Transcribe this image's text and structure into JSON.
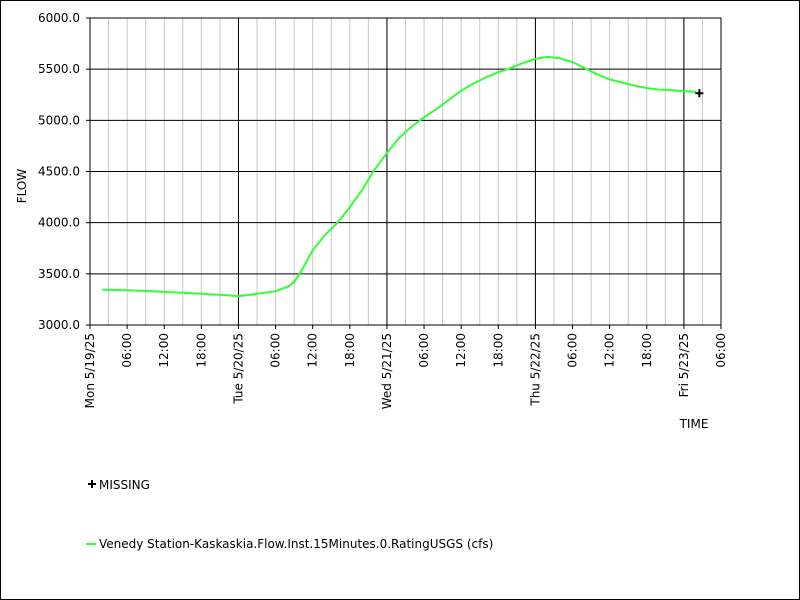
{
  "chart_data": {
    "type": "line",
    "ylabel": "FLOW",
    "xlabel": "TIME",
    "ylim": [
      3000,
      6000
    ],
    "yticks": [
      "3000.0",
      "3500.0",
      "4000.0",
      "4500.0",
      "5000.0",
      "5500.0",
      "6000.0"
    ],
    "x_start": "2025-05-19T00:00",
    "x_end": "2025-05-23T06:00",
    "x_tick_labels": [
      {
        "t": "2025-05-19T00:00",
        "label": "Mon 5/19/25",
        "major": true
      },
      {
        "t": "2025-05-19T06:00",
        "label": "06:00",
        "major": false
      },
      {
        "t": "2025-05-19T12:00",
        "label": "12:00",
        "major": false
      },
      {
        "t": "2025-05-19T18:00",
        "label": "18:00",
        "major": false
      },
      {
        "t": "2025-05-20T00:00",
        "label": "Tue 5/20/25",
        "major": true
      },
      {
        "t": "2025-05-20T06:00",
        "label": "06:00",
        "major": false
      },
      {
        "t": "2025-05-20T12:00",
        "label": "12:00",
        "major": false
      },
      {
        "t": "2025-05-20T18:00",
        "label": "18:00",
        "major": false
      },
      {
        "t": "2025-05-21T00:00",
        "label": "Wed 5/21/25",
        "major": true
      },
      {
        "t": "2025-05-21T06:00",
        "label": "06:00",
        "major": false
      },
      {
        "t": "2025-05-21T12:00",
        "label": "12:00",
        "major": false
      },
      {
        "t": "2025-05-21T18:00",
        "label": "18:00",
        "major": false
      },
      {
        "t": "2025-05-22T00:00",
        "label": "Thu 5/22/25",
        "major": true
      },
      {
        "t": "2025-05-22T06:00",
        "label": "06:00",
        "major": false
      },
      {
        "t": "2025-05-22T12:00",
        "label": "12:00",
        "major": false
      },
      {
        "t": "2025-05-22T18:00",
        "label": "18:00",
        "major": false
      },
      {
        "t": "2025-05-23T00:00",
        "label": "Fri 5/23/25",
        "major": true
      },
      {
        "t": "2025-05-23T06:00",
        "label": "06:00",
        "major": false
      }
    ],
    "grid": true,
    "legend_position": "bottom",
    "series": [
      {
        "name": "Venedy Station-Kaskaskia.Flow.Inst.15Minutes.0.RatingUSGS (cfs)",
        "color": "#33ff33",
        "points": [
          [
            "2025-05-19T02:00",
            3345
          ],
          [
            "2025-05-19T06:00",
            3340
          ],
          [
            "2025-05-19T10:00",
            3330
          ],
          [
            "2025-05-19T14:00",
            3318
          ],
          [
            "2025-05-19T18:00",
            3305
          ],
          [
            "2025-05-19T22:00",
            3292
          ],
          [
            "2025-05-20T00:00",
            3280
          ],
          [
            "2025-05-20T03:00",
            3305
          ],
          [
            "2025-05-20T06:00",
            3330
          ],
          [
            "2025-05-20T08:00",
            3375
          ],
          [
            "2025-05-20T09:00",
            3420
          ],
          [
            "2025-05-20T10:00",
            3510
          ],
          [
            "2025-05-20T11:00",
            3620
          ],
          [
            "2025-05-20T12:00",
            3730
          ],
          [
            "2025-05-20T14:00",
            3880
          ],
          [
            "2025-05-20T16:00",
            4000
          ],
          [
            "2025-05-20T18:00",
            4150
          ],
          [
            "2025-05-20T20:00",
            4320
          ],
          [
            "2025-05-20T22:00",
            4520
          ],
          [
            "2025-05-21T00:00",
            4680
          ],
          [
            "2025-05-21T02:00",
            4830
          ],
          [
            "2025-05-21T04:00",
            4940
          ],
          [
            "2025-05-21T06:00",
            5030
          ],
          [
            "2025-05-21T08:00",
            5110
          ],
          [
            "2025-05-21T10:00",
            5200
          ],
          [
            "2025-05-21T12:00",
            5290
          ],
          [
            "2025-05-21T14:00",
            5360
          ],
          [
            "2025-05-21T16:00",
            5420
          ],
          [
            "2025-05-21T18:00",
            5470
          ],
          [
            "2025-05-21T20:00",
            5510
          ],
          [
            "2025-05-21T22:00",
            5560
          ],
          [
            "2025-05-22T00:00",
            5600
          ],
          [
            "2025-05-22T02:00",
            5620
          ],
          [
            "2025-05-22T04:00",
            5605
          ],
          [
            "2025-05-22T06:00",
            5570
          ],
          [
            "2025-05-22T08:00",
            5510
          ],
          [
            "2025-05-22T10:00",
            5450
          ],
          [
            "2025-05-22T12:00",
            5400
          ],
          [
            "2025-05-22T14:00",
            5370
          ],
          [
            "2025-05-22T16:00",
            5340
          ],
          [
            "2025-05-22T18:00",
            5315
          ],
          [
            "2025-05-22T20:00",
            5300
          ],
          [
            "2025-05-22T22:00",
            5295
          ],
          [
            "2025-05-23T00:00",
            5285
          ],
          [
            "2025-05-23T02:00",
            5280
          ]
        ]
      }
    ],
    "missing_marker": {
      "t": "2025-05-23T02:30",
      "value": 5265,
      "label": "MISSING"
    }
  }
}
